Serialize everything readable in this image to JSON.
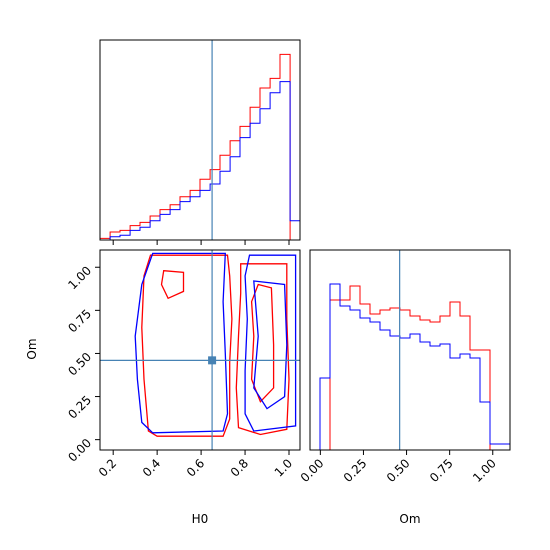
{
  "chart_data": {
    "type": "corner",
    "parameters": [
      "H0",
      "Om"
    ],
    "colors": {
      "series_a": "#ff0000",
      "series_b": "#0000ff",
      "truth": "#4682b4"
    },
    "truth": {
      "H0": 0.65,
      "Om": 0.46
    },
    "axes": {
      "H0": {
        "range": [
          0.14,
          1.05
        ],
        "ticks": [
          0.2,
          0.4,
          0.6,
          0.8,
          1.0
        ],
        "tick_labels": [
          "0.2",
          "0.4",
          "0.6",
          "0.8",
          "1.0"
        ],
        "label": "H0"
      },
      "Om": {
        "range": [
          -0.06,
          1.1
        ],
        "ticks": [
          0.0,
          0.25,
          0.5,
          0.75,
          1.0
        ],
        "tick_labels": [
          "0.00",
          "0.25",
          "0.50",
          "0.75",
          "1.00"
        ],
        "label": "Om"
      }
    },
    "hist_H0": {
      "edges": [
        0.14,
        0.186,
        0.231,
        0.277,
        0.322,
        0.368,
        0.413,
        0.459,
        0.504,
        0.55,
        0.595,
        0.641,
        0.686,
        0.732,
        0.777,
        0.823,
        0.868,
        0.914,
        0.959,
        1.005,
        1.05
      ],
      "series": [
        {
          "color": "#ff0000",
          "values": [
            1,
            5,
            6,
            9,
            11,
            15,
            19,
            22,
            27,
            31,
            38,
            44,
            53,
            62,
            71,
            83,
            95,
            101,
            116,
            0
          ]
        },
        {
          "color": "#0000ff",
          "values": [
            0,
            2,
            3,
            6,
            8,
            12,
            16,
            19,
            24,
            27,
            31,
            35,
            43,
            52,
            64,
            73,
            82,
            92,
            99,
            12
          ]
        }
      ],
      "ymax": 125
    },
    "hist_Om": {
      "edges": [
        -0.06,
        -0.002,
        0.056,
        0.114,
        0.172,
        0.23,
        0.288,
        0.346,
        0.404,
        0.462,
        0.52,
        0.578,
        0.636,
        0.694,
        0.752,
        0.81,
        0.868,
        0.926,
        0.984,
        1.042,
        1.1
      ],
      "series": [
        {
          "color": "#ff0000",
          "values": [
            0,
            0,
            75,
            75,
            82,
            73,
            68,
            70,
            71,
            70,
            67,
            65,
            64,
            67,
            74,
            67,
            50,
            50,
            0,
            0
          ]
        },
        {
          "color": "#0000ff",
          "values": [
            0,
            36,
            83,
            72,
            70,
            66,
            64,
            60,
            57,
            56,
            58,
            54,
            52,
            53,
            46,
            48,
            46,
            24,
            3,
            3
          ]
        }
      ],
      "ymax": 100
    },
    "contours_2d": [
      {
        "color": "#ff0000",
        "points": [
          [
            0.37,
            1.07
          ],
          [
            0.72,
            1.07
          ],
          [
            0.73,
            0.95
          ],
          [
            0.74,
            0.7
          ],
          [
            0.73,
            0.45
          ],
          [
            0.73,
            0.12
          ],
          [
            0.7,
            0.02
          ],
          [
            0.4,
            0.02
          ],
          [
            0.36,
            0.05
          ],
          [
            0.34,
            0.35
          ],
          [
            0.33,
            0.65
          ],
          [
            0.34,
            0.95
          ],
          [
            0.37,
            1.07
          ]
        ]
      },
      {
        "color": "#ff0000",
        "points": [
          [
            0.43,
            0.98
          ],
          [
            0.52,
            0.97
          ],
          [
            0.52,
            0.86
          ],
          [
            0.45,
            0.82
          ],
          [
            0.42,
            0.9
          ],
          [
            0.43,
            0.98
          ]
        ]
      },
      {
        "color": "#ff0000",
        "points": [
          [
            0.78,
            1.02
          ],
          [
            0.99,
            1.02
          ],
          [
            0.99,
            0.7
          ],
          [
            1.0,
            0.35
          ],
          [
            0.99,
            0.06
          ],
          [
            0.87,
            0.03
          ],
          [
            0.77,
            0.07
          ],
          [
            0.76,
            0.3
          ],
          [
            0.77,
            0.6
          ],
          [
            0.78,
            0.85
          ],
          [
            0.78,
            1.02
          ]
        ]
      },
      {
        "color": "#ff0000",
        "points": [
          [
            0.86,
            0.9
          ],
          [
            0.92,
            0.88
          ],
          [
            0.93,
            0.55
          ],
          [
            0.93,
            0.3
          ],
          [
            0.87,
            0.22
          ],
          [
            0.83,
            0.35
          ],
          [
            0.84,
            0.6
          ],
          [
            0.83,
            0.8
          ],
          [
            0.86,
            0.9
          ]
        ]
      },
      {
        "color": "#0000ff",
        "points": [
          [
            0.38,
            1.08
          ],
          [
            0.71,
            1.08
          ],
          [
            0.7,
            0.8
          ],
          [
            0.71,
            0.5
          ],
          [
            0.72,
            0.15
          ],
          [
            0.7,
            0.05
          ],
          [
            0.38,
            0.04
          ],
          [
            0.33,
            0.1
          ],
          [
            0.31,
            0.35
          ],
          [
            0.3,
            0.6
          ],
          [
            0.33,
            0.9
          ],
          [
            0.38,
            1.08
          ]
        ]
      },
      {
        "color": "#0000ff",
        "points": [
          [
            0.82,
            1.07
          ],
          [
            1.03,
            1.07
          ],
          [
            1.03,
            0.08
          ],
          [
            0.84,
            0.05
          ],
          [
            0.8,
            0.15
          ],
          [
            0.8,
            0.4
          ],
          [
            0.81,
            0.7
          ],
          [
            0.8,
            0.95
          ],
          [
            0.82,
            1.07
          ]
        ]
      },
      {
        "color": "#0000ff",
        "points": [
          [
            0.84,
            0.92
          ],
          [
            0.98,
            0.9
          ],
          [
            0.99,
            0.55
          ],
          [
            0.98,
            0.25
          ],
          [
            0.9,
            0.18
          ],
          [
            0.84,
            0.3
          ],
          [
            0.86,
            0.6
          ],
          [
            0.84,
            0.92
          ]
        ]
      }
    ]
  }
}
